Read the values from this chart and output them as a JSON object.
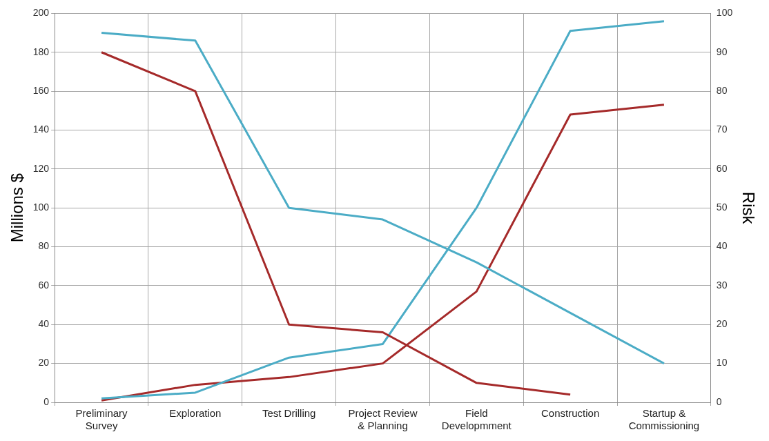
{
  "chart_data": {
    "type": "line",
    "categories": [
      "Preliminary Survey",
      "Exploration",
      "Test Drilling",
      "Project Review & Planning",
      "Field Developmment",
      "Construction",
      "Startup & Commissioning"
    ],
    "ylabel": "Millions $",
    "y2label": "Risk",
    "ylim": [
      0,
      200
    ],
    "yticks": [
      0,
      20,
      40,
      60,
      80,
      100,
      120,
      140,
      160,
      180,
      200
    ],
    "y2lim": [
      0,
      100
    ],
    "y2ticks": [
      0,
      10,
      20,
      30,
      40,
      50,
      60,
      70,
      80,
      90,
      100
    ],
    "grid": true,
    "legend": false,
    "marker": "none",
    "line_style": "solid",
    "series": [
      {
        "color": "#4bacc6",
        "axis": "y2",
        "values": [
          95,
          93,
          50,
          47,
          36,
          23,
          10
        ]
      },
      {
        "color": "#a52a2a",
        "axis": "y2",
        "values": [
          90,
          80,
          20,
          18,
          5,
          2,
          null
        ]
      },
      {
        "color": "#4bacc6",
        "values": [
          2,
          5,
          23,
          30,
          100,
          191,
          196
        ]
      },
      {
        "color": "#a52a2a",
        "values": [
          1,
          9,
          13,
          20,
          57,
          148,
          153
        ]
      }
    ]
  }
}
